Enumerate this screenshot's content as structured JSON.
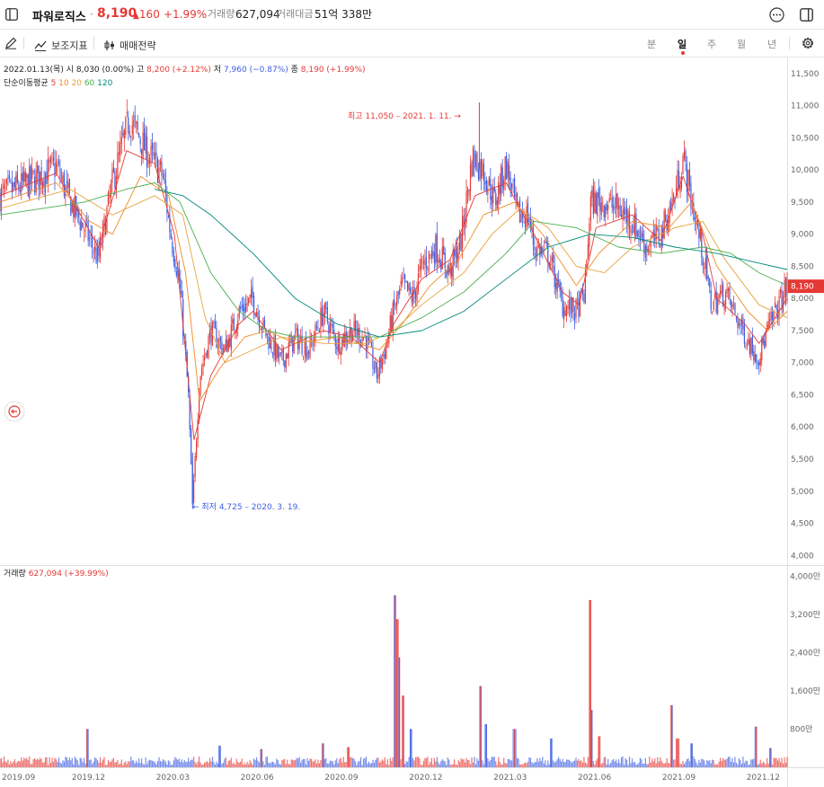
{
  "header": {
    "stock_name": "파워로직스",
    "separator": "·",
    "price": "8,190",
    "change": "160",
    "change_pct": "+1.99%",
    "volume_label": "거래량",
    "volume_value": "627,094",
    "turnover_label": "거래대금",
    "turnover_value": "51억 338만"
  },
  "toolbar": {
    "indicators_label": "보조지표",
    "strategy_label": "매매전략",
    "timeframes": [
      "분",
      "일",
      "주",
      "월",
      "년"
    ],
    "active_timeframe": "일"
  },
  "info": {
    "date": "2022.01.13(목)",
    "open_label": "시",
    "open_value": "8,030 (0.00%)",
    "high_label": "고",
    "high_value": "8,200 (+2.12%)",
    "low_label": "저",
    "low_value": "7,960 (−0.87%)",
    "close_label": "종",
    "close_value": "8,190 (+1.99%)",
    "ma_label": "단순이동평균",
    "ma_periods": [
      "5",
      "10",
      "20",
      "60",
      "120"
    ],
    "volume_label": "거래량",
    "volume_value": "627,094 (+39.99%)"
  },
  "annotations": {
    "max_label": "최고 11,050 – 2021. 1. 11. →",
    "min_label": "← 최저 4,725 – 2020. 3. 19."
  },
  "colors": {
    "up": "#e53935",
    "down": "#3d5ee1",
    "ma5": "#e53935",
    "ma10": "#f08a24",
    "ma20": "#e8a33d",
    "ma60": "#4caf50",
    "ma120": "#00897b"
  },
  "chart_data": {
    "type": "candlestick",
    "y_ticks": [
      "11,500",
      "11,000",
      "10,500",
      "10,000",
      "9,500",
      "9,000",
      "8,500",
      "8,000",
      "7,500",
      "7,000",
      "6,500",
      "6,000",
      "5,500",
      "5,000",
      "4,500",
      "4,000"
    ],
    "y_range": [
      3850,
      11750
    ],
    "volume_ticks": [
      "4,000만",
      "3,200만",
      "2,400만",
      "1,600만",
      "800만"
    ],
    "volume_range": [
      0,
      4100
    ],
    "x_ticks": [
      "2019.09",
      "2019.12",
      "2020.03",
      "2020.06",
      "2020.09",
      "2020.12",
      "2021.03",
      "2021.06",
      "2021.09",
      "2021.12"
    ],
    "x_range": [
      "2019.09",
      "2022.01"
    ],
    "last_price_tag": "8,190",
    "last_price": 8190,
    "max": {
      "value": 11050,
      "date": "2021. 1. 11."
    },
    "min": {
      "value": 4725,
      "date": "2020. 3. 19."
    },
    "price_path": [
      [
        0.0,
        9600
      ],
      [
        1.0,
        9800
      ],
      [
        2.0,
        10050
      ],
      [
        2.5,
        9500
      ],
      [
        3.0,
        9100
      ],
      [
        3.5,
        8600
      ],
      [
        4.0,
        9800
      ],
      [
        4.6,
        10800
      ],
      [
        5.2,
        10300
      ],
      [
        5.8,
        9900
      ],
      [
        6.0,
        9200
      ],
      [
        6.4,
        8200
      ],
      [
        6.7,
        6500
      ],
      [
        6.85,
        4725
      ],
      [
        7.1,
        6800
      ],
      [
        7.5,
        7500
      ],
      [
        8.0,
        7200
      ],
      [
        8.5,
        7800
      ],
      [
        9.0,
        8000
      ],
      [
        9.4,
        7500
      ],
      [
        10.0,
        7000
      ],
      [
        10.5,
        7400
      ],
      [
        11.0,
        7200
      ],
      [
        11.5,
        7800
      ],
      [
        12.0,
        7300
      ],
      [
        12.5,
        7500
      ],
      [
        13.0,
        7400
      ],
      [
        13.4,
        6800
      ],
      [
        13.7,
        7200
      ],
      [
        14.0,
        7800
      ],
      [
        14.3,
        8200
      ],
      [
        14.7,
        8000
      ],
      [
        15.0,
        8500
      ],
      [
        15.5,
        8800
      ],
      [
        16.0,
        8400
      ],
      [
        16.4,
        8900
      ],
      [
        16.8,
        10200
      ],
      [
        17.2,
        10000
      ],
      [
        17.6,
        9500
      ],
      [
        18.0,
        10100
      ],
      [
        18.4,
        9300
      ],
      [
        18.8,
        9300
      ],
      [
        19.0,
        8800
      ],
      [
        19.5,
        8700
      ],
      [
        20.0,
        7900
      ],
      [
        20.5,
        7800
      ],
      [
        20.8,
        8100
      ],
      [
        21.0,
        9500
      ],
      [
        21.5,
        9500
      ],
      [
        22.0,
        9400
      ],
      [
        22.5,
        9200
      ],
      [
        23.0,
        8800
      ],
      [
        23.5,
        9000
      ],
      [
        24.0,
        9600
      ],
      [
        24.3,
        10200
      ],
      [
        24.6,
        9500
      ],
      [
        25.0,
        8700
      ],
      [
        25.3,
        7900
      ],
      [
        25.8,
        8100
      ],
      [
        26.3,
        7600
      ],
      [
        26.8,
        7200
      ],
      [
        27.0,
        7100
      ],
      [
        27.3,
        7500
      ],
      [
        27.8,
        8000
      ],
      [
        28.0,
        8190
      ]
    ],
    "moving_averages": {
      "5": [
        [
          0.0,
          9600
        ],
        [
          2.0,
          9950
        ],
        [
          3.0,
          9200
        ],
        [
          3.5,
          8800
        ],
        [
          4.5,
          10300
        ],
        [
          5.5,
          10100
        ],
        [
          6.2,
          9000
        ],
        [
          6.9,
          5800
        ],
        [
          7.5,
          6800
        ],
        [
          8.5,
          7600
        ],
        [
          9.0,
          7800
        ],
        [
          10.0,
          7200
        ],
        [
          11.5,
          7500
        ],
        [
          12.5,
          7400
        ],
        [
          13.5,
          7000
        ],
        [
          14.0,
          7600
        ],
        [
          15.0,
          8300
        ],
        [
          16.0,
          8600
        ],
        [
          16.9,
          9600
        ],
        [
          18.0,
          9800
        ],
        [
          19.0,
          9000
        ],
        [
          20.0,
          8100
        ],
        [
          20.6,
          7900
        ],
        [
          21.2,
          9100
        ],
        [
          22.5,
          9300
        ],
        [
          23.5,
          8900
        ],
        [
          24.3,
          9900
        ],
        [
          25.0,
          9000
        ],
        [
          25.5,
          8000
        ],
        [
          26.5,
          7600
        ],
        [
          27.0,
          7300
        ],
        [
          28.0,
          8000
        ]
      ],
      "10": [
        [
          0.0,
          9500
        ],
        [
          2.0,
          9800
        ],
        [
          3.2,
          9200
        ],
        [
          4.0,
          9000
        ],
        [
          5.0,
          9900
        ],
        [
          6.0,
          9600
        ],
        [
          6.6,
          8400
        ],
        [
          7.1,
          6400
        ],
        [
          7.8,
          6900
        ],
        [
          8.7,
          7400
        ],
        [
          9.5,
          7500
        ],
        [
          10.5,
          7300
        ],
        [
          12.0,
          7400
        ],
        [
          13.5,
          7200
        ],
        [
          14.3,
          7600
        ],
        [
          15.3,
          8200
        ],
        [
          16.3,
          8600
        ],
        [
          17.2,
          9300
        ],
        [
          18.3,
          9500
        ],
        [
          19.3,
          9000
        ],
        [
          20.5,
          8200
        ],
        [
          21.3,
          8700
        ],
        [
          22.5,
          9200
        ],
        [
          23.8,
          9100
        ],
        [
          24.6,
          9500
        ],
        [
          25.5,
          8500
        ],
        [
          26.6,
          7800
        ],
        [
          27.3,
          7500
        ],
        [
          28.0,
          7800
        ]
      ],
      "20": [
        [
          0.0,
          9400
        ],
        [
          2.5,
          9700
        ],
        [
          4.0,
          9300
        ],
        [
          5.5,
          9600
        ],
        [
          6.5,
          9300
        ],
        [
          7.3,
          7700
        ],
        [
          8.0,
          7000
        ],
        [
          9.0,
          7200
        ],
        [
          10.0,
          7400
        ],
        [
          11.5,
          7300
        ],
        [
          13.0,
          7300
        ],
        [
          14.0,
          7500
        ],
        [
          15.0,
          7900
        ],
        [
          16.5,
          8400
        ],
        [
          17.5,
          9000
        ],
        [
          18.5,
          9400
        ],
        [
          19.5,
          9100
        ],
        [
          20.5,
          8500
        ],
        [
          21.5,
          8400
        ],
        [
          22.5,
          8800
        ],
        [
          24.0,
          9100
        ],
        [
          25.0,
          9200
        ],
        [
          25.8,
          8600
        ],
        [
          27.0,
          7900
        ],
        [
          28.0,
          7700
        ]
      ],
      "60": [
        [
          0.0,
          9300
        ],
        [
          3.0,
          9500
        ],
        [
          4.5,
          9700
        ],
        [
          5.5,
          9800
        ],
        [
          6.4,
          9500
        ],
        [
          7.5,
          8400
        ],
        [
          8.5,
          7800
        ],
        [
          9.5,
          7500
        ],
        [
          10.5,
          7400
        ],
        [
          12.0,
          7400
        ],
        [
          13.5,
          7400
        ],
        [
          15.0,
          7700
        ],
        [
          16.5,
          8100
        ],
        [
          18.0,
          8700
        ],
        [
          19.0,
          9200
        ],
        [
          20.5,
          9100
        ],
        [
          22.0,
          8800
        ],
        [
          23.5,
          8700
        ],
        [
          25.0,
          8800
        ],
        [
          26.0,
          8700
        ],
        [
          27.0,
          8400
        ],
        [
          28.0,
          8200
        ]
      ],
      "120": [
        [
          5.5,
          9700
        ],
        [
          6.5,
          9600
        ],
        [
          7.5,
          9300
        ],
        [
          9.0,
          8700
        ],
        [
          10.5,
          8000
        ],
        [
          12.0,
          7600
        ],
        [
          13.5,
          7400
        ],
        [
          15.0,
          7500
        ],
        [
          16.5,
          7800
        ],
        [
          18.0,
          8300
        ],
        [
          19.5,
          8800
        ],
        [
          21.0,
          9000
        ],
        [
          22.5,
          8950
        ],
        [
          24.0,
          8800
        ],
        [
          25.5,
          8700
        ],
        [
          27.0,
          8550
        ],
        [
          28.0,
          8450
        ]
      ]
    },
    "volume_spikes": [
      [
        3.1,
        800
      ],
      [
        7.8,
        450
      ],
      [
        9.3,
        380
      ],
      [
        11.5,
        500
      ],
      [
        12.4,
        420
      ],
      [
        14.05,
        3600
      ],
      [
        14.12,
        3100
      ],
      [
        14.2,
        2300
      ],
      [
        14.35,
        1500
      ],
      [
        14.6,
        800
      ],
      [
        17.1,
        1700
      ],
      [
        17.3,
        900
      ],
      [
        18.3,
        800
      ],
      [
        19.6,
        600
      ],
      [
        21.0,
        3500
      ],
      [
        21.05,
        1200
      ],
      [
        21.3,
        650
      ],
      [
        23.9,
        1300
      ],
      [
        24.1,
        600
      ],
      [
        24.6,
        500
      ],
      [
        26.9,
        850
      ],
      [
        27.4,
        400
      ]
    ],
    "volume_baseline": 150
  }
}
